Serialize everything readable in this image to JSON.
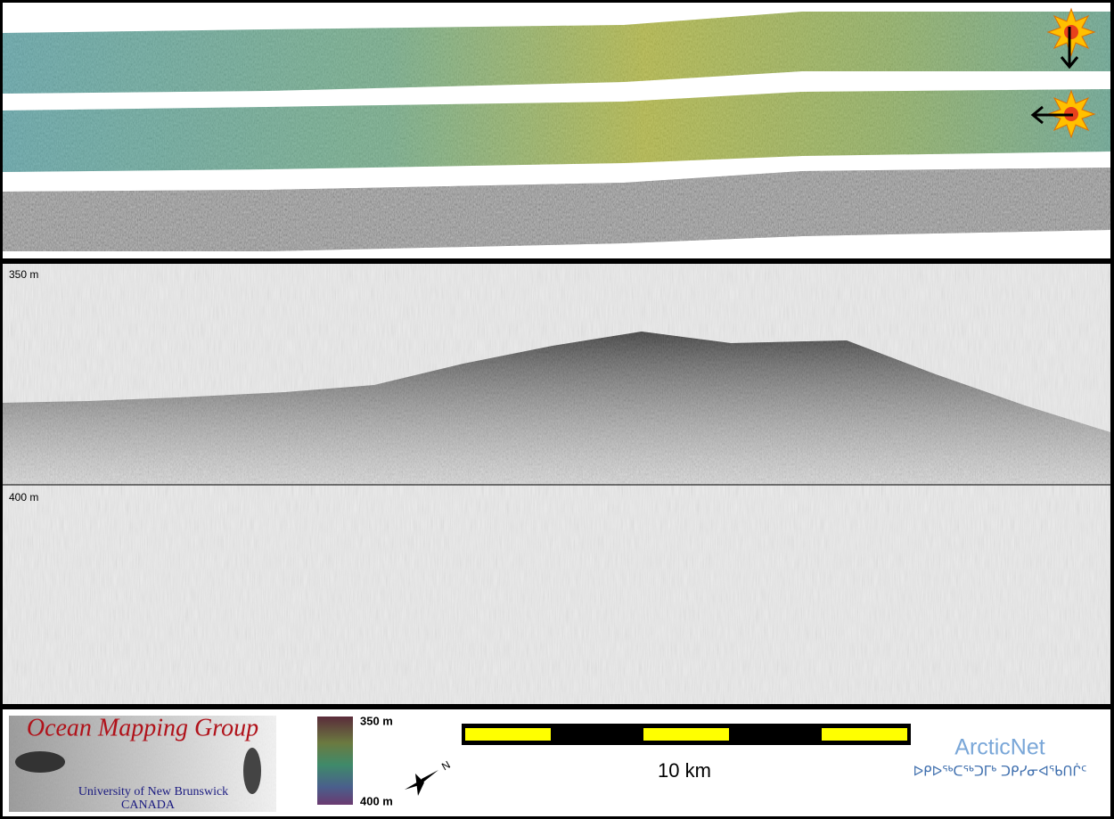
{
  "profile": {
    "depth_labels": [
      "350 m",
      "400 m"
    ]
  },
  "legend": {
    "top": "350 m",
    "bottom": "400 m"
  },
  "scale_bar": {
    "label": "10 km"
  },
  "compass": {
    "label": "N"
  },
  "logos": {
    "omg": {
      "title": "Ocean Mapping Group",
      "university": "University of New Brunswick",
      "country": "CANADA"
    },
    "arcticnet": {
      "name": "ArcticNet",
      "syllabics": "ᐅᑭᐅᖅᑕᖅᑐᒥᒃ ᑐᑭᓯᓂᐊᖃᑎᒌᑦ"
    }
  }
}
